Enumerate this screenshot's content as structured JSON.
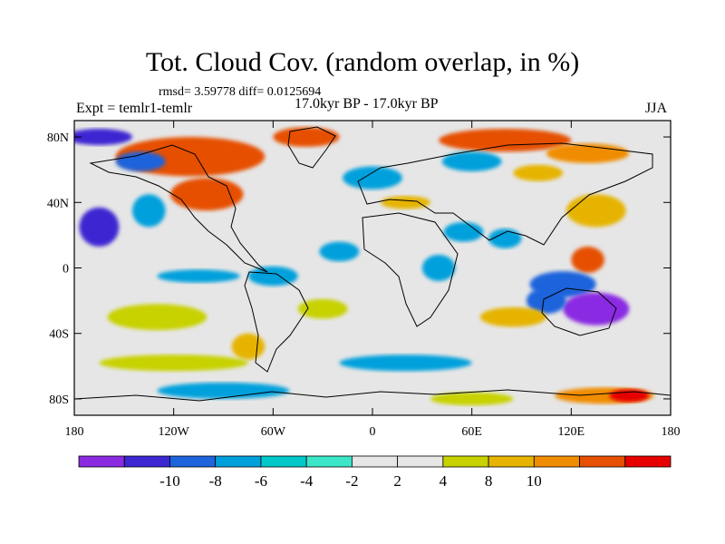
{
  "title": "Tot. Cloud Cov. (random overlap, in %)",
  "stats": "rmsd= 3.59778 diff= 0.0125694",
  "experiment": "Expt = temlr1-temlr",
  "period": "17.0kyr BP - 17.0kyr BP",
  "season": "JJA",
  "map": {
    "lon_range": [
      -180,
      180
    ],
    "lat_range": [
      -90,
      90
    ],
    "lon_tick_values": [
      -180,
      -120,
      -60,
      0,
      60,
      120,
      180
    ],
    "lon_tick_labels": [
      "180",
      "120W",
      "60W",
      "0",
      "60E",
      "120E",
      "180"
    ],
    "lat_tick_values": [
      80,
      40,
      0,
      -40,
      -80
    ],
    "lat_tick_labels": [
      "80N",
      "40N",
      "0",
      "40S",
      "80S"
    ],
    "background_color": "#e6e6e6",
    "regions": [
      {
        "name": "arctic-canada-positive",
        "lon": -110,
        "lat": 68,
        "rx": 45,
        "ry": 12,
        "class": 5
      },
      {
        "name": "n-america-positive",
        "lon": -100,
        "lat": 45,
        "rx": 22,
        "ry": 10,
        "class": 5
      },
      {
        "name": "greenland-positive",
        "lon": -40,
        "lat": 80,
        "rx": 20,
        "ry": 6,
        "class": 5
      },
      {
        "name": "arctic-russia-positive",
        "lon": 80,
        "lat": 78,
        "rx": 40,
        "ry": 7,
        "class": 5
      },
      {
        "name": "siberia-positive",
        "lon": 130,
        "lat": 70,
        "rx": 25,
        "ry": 6,
        "class": 4
      },
      {
        "name": "west-siberia-negative",
        "lon": 60,
        "lat": 65,
        "rx": 18,
        "ry": 6,
        "class": -3
      },
      {
        "name": "mongolia-positive",
        "lon": 100,
        "lat": 58,
        "rx": 15,
        "ry": 5,
        "class": 3
      },
      {
        "name": "alaska-negative",
        "lon": -165,
        "lat": 80,
        "rx": 20,
        "ry": 5,
        "class": -5
      },
      {
        "name": "bering-negative",
        "lon": -140,
        "lat": 65,
        "rx": 15,
        "ry": 6,
        "class": -4
      },
      {
        "name": "ne-pacific-negative",
        "lon": -165,
        "lat": 25,
        "rx": 12,
        "ry": 12,
        "class": -5
      },
      {
        "name": "hawaii-negative",
        "lon": -135,
        "lat": 35,
        "rx": 10,
        "ry": 10,
        "class": -3
      },
      {
        "name": "east-asia-positive",
        "lon": 135,
        "lat": 35,
        "rx": 18,
        "ry": 10,
        "class": 3
      },
      {
        "name": "n-atlantic-negative",
        "lon": 0,
        "lat": 55,
        "rx": 18,
        "ry": 7,
        "class": -3
      },
      {
        "name": "mediterranean-positive",
        "lon": 20,
        "lat": 40,
        "rx": 15,
        "ry": 4,
        "class": 3
      },
      {
        "name": "arabia-negative",
        "lon": 55,
        "lat": 22,
        "rx": 12,
        "ry": 6,
        "class": -3
      },
      {
        "name": "india-negative",
        "lon": 80,
        "lat": 18,
        "rx": 10,
        "ry": 6,
        "class": -3
      },
      {
        "name": "philippines-positive",
        "lon": 130,
        "lat": 5,
        "rx": 10,
        "ry": 8,
        "class": 5
      },
      {
        "name": "maritime-negative",
        "lon": 115,
        "lat": -10,
        "rx": 20,
        "ry": 8,
        "class": -4
      },
      {
        "name": "australia-negative",
        "lon": 135,
        "lat": -25,
        "rx": 20,
        "ry": 10,
        "class": -6
      },
      {
        "name": "w-australia-negative",
        "lon": 105,
        "lat": -20,
        "rx": 12,
        "ry": 8,
        "class": -4
      },
      {
        "name": "s-indian-ocean-positive",
        "lon": 85,
        "lat": -30,
        "rx": 20,
        "ry": 6,
        "class": 3
      },
      {
        "name": "s-pacific-positive",
        "lon": -130,
        "lat": -30,
        "rx": 30,
        "ry": 8,
        "class": 2
      },
      {
        "name": "e-pacific-negative",
        "lon": -105,
        "lat": -5,
        "rx": 25,
        "ry": 4,
        "class": -3
      },
      {
        "name": "amazon-negative",
        "lon": -60,
        "lat": -5,
        "rx": 15,
        "ry": 6,
        "class": -3
      },
      {
        "name": "patagonia-positive",
        "lon": -75,
        "lat": -48,
        "rx": 10,
        "ry": 8,
        "class": 3
      },
      {
        "name": "s-atlantic-positive",
        "lon": -30,
        "lat": -25,
        "rx": 15,
        "ry": 6,
        "class": 2
      },
      {
        "name": "southern-ocean-positive",
        "lon": -120,
        "lat": -58,
        "rx": 45,
        "ry": 5,
        "class": 2
      },
      {
        "name": "southern-ocean-negative",
        "lon": 20,
        "lat": -58,
        "rx": 40,
        "ry": 5,
        "class": -3
      },
      {
        "name": "antarctic-negative",
        "lon": -90,
        "lat": -75,
        "rx": 40,
        "ry": 5,
        "class": -3
      },
      {
        "name": "e-antarctic-positive",
        "lon": 140,
        "lat": -78,
        "rx": 30,
        "ry": 5,
        "class": 4
      },
      {
        "name": "e-antarctic-strong-positive",
        "lon": 155,
        "lat": -78,
        "rx": 12,
        "ry": 4,
        "class": 6
      },
      {
        "name": "antarctic-positive-mid",
        "lon": 60,
        "lat": -80,
        "rx": 25,
        "ry": 4,
        "class": 2
      },
      {
        "name": "tropical-atlantic-negative",
        "lon": -20,
        "lat": 10,
        "rx": 12,
        "ry": 6,
        "class": -3
      },
      {
        "name": "e-africa-negative",
        "lon": 40,
        "lat": 0,
        "rx": 10,
        "ry": 8,
        "class": -3
      }
    ]
  },
  "colorbar": {
    "colors": [
      "#8a2be2",
      "#3c28d2",
      "#1e64dc",
      "#00a0dc",
      "#00c8c8",
      "#3ce6c8",
      "#e6e6e6",
      "#e6e6e6",
      "#c8d200",
      "#e6b400",
      "#f08c00",
      "#e65000",
      "#e60000"
    ],
    "labels": [
      "-10",
      "-8",
      "-6",
      "-4",
      "-2",
      "2",
      "4",
      "8",
      "10"
    ]
  }
}
